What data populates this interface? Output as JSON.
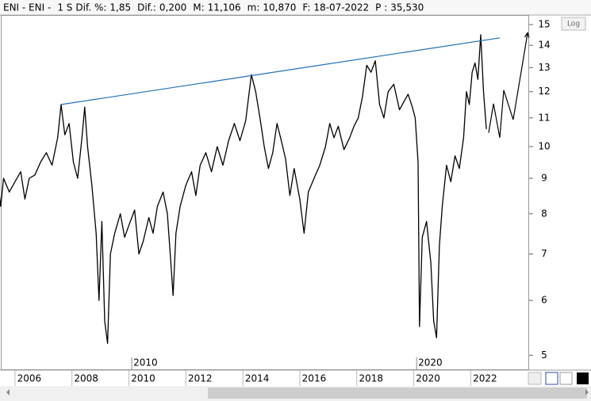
{
  "header": {
    "symbol": "ENI - ENI -",
    "period": "1 S",
    "items": [
      {
        "label": "Dif. %:",
        "value": "1,85",
        "color": "#3d8fd8"
      },
      {
        "label": "Dif.:",
        "value": "0,200",
        "color": "#3d8fd8"
      },
      {
        "label": "M:",
        "value": "11,106",
        "color": "#000000"
      },
      {
        "label": "m:",
        "value": "10,870",
        "color": "#000000"
      },
      {
        "label": "F:",
        "value": "18-07-2022",
        "color": "#000000"
      },
      {
        "label": "P :",
        "value": "35,530",
        "color": "#e0201a"
      }
    ]
  },
  "chart_data": {
    "type": "line",
    "color": "#000000",
    "log_scale": true,
    "log_button": "Log",
    "xlim": [
      2005.53,
      2024.05
    ],
    "xticks": [
      2006,
      2008,
      2010,
      2012,
      2014,
      2016,
      2018,
      2020,
      2022
    ],
    "ylim": [
      4.76,
      15.48
    ],
    "yticks": [
      5,
      6,
      7,
      8,
      9,
      10,
      11,
      12,
      13,
      14,
      15
    ],
    "period_markers": [
      {
        "x": 2010.1,
        "label": "2010"
      },
      {
        "x": 2020.1,
        "label": "2020"
      }
    ],
    "x": [
      2005.2,
      2005.4,
      2005.5,
      2005.6,
      2005.8,
      2006.0,
      2006.2,
      2006.35,
      2006.5,
      2006.7,
      2006.9,
      2007.1,
      2007.3,
      2007.5,
      2007.62,
      2007.75,
      2007.9,
      2008.05,
      2008.2,
      2008.35,
      2008.45,
      2008.55,
      2008.7,
      2008.85,
      2008.95,
      2009.05,
      2009.15,
      2009.25,
      2009.35,
      2009.5,
      2009.7,
      2009.85,
      2010.0,
      2010.2,
      2010.35,
      2010.5,
      2010.7,
      2010.85,
      2011.0,
      2011.2,
      2011.35,
      2011.45,
      2011.55,
      2011.65,
      2011.8,
      2012.0,
      2012.2,
      2012.35,
      2012.5,
      2012.7,
      2012.9,
      2013.1,
      2013.3,
      2013.5,
      2013.7,
      2013.9,
      2014.1,
      2014.3,
      2014.45,
      2014.6,
      2014.75,
      2014.9,
      2015.05,
      2015.2,
      2015.35,
      2015.5,
      2015.65,
      2015.8,
      2016.0,
      2016.15,
      2016.3,
      2016.5,
      2016.7,
      2016.9,
      2017.05,
      2017.2,
      2017.35,
      2017.55,
      2017.75,
      2017.9,
      2018.05,
      2018.2,
      2018.35,
      2018.5,
      2018.65,
      2018.8,
      2018.95,
      2019.1,
      2019.3,
      2019.5,
      2019.65,
      2019.8,
      2019.95,
      2020.05,
      2020.15,
      2020.2,
      2020.3,
      2020.45,
      2020.6,
      2020.7,
      2020.8,
      2020.9,
      2021.0,
      2021.15,
      2021.3,
      2021.45,
      2021.6,
      2021.75,
      2021.85,
      2021.95,
      2022.05,
      2022.15,
      2022.25,
      2022.35,
      2022.45,
      2022.55
    ],
    "values": [
      8.4,
      8.9,
      8.2,
      9.0,
      8.6,
      8.9,
      9.2,
      8.4,
      9.0,
      9.1,
      9.5,
      9.8,
      9.4,
      10.3,
      11.5,
      10.4,
      10.8,
      9.5,
      9.0,
      10.3,
      11.4,
      10.0,
      8.8,
      7.5,
      6.0,
      7.8,
      5.6,
      5.2,
      7.0,
      7.5,
      8.0,
      7.4,
      7.7,
      8.1,
      7.0,
      7.3,
      7.9,
      7.5,
      8.2,
      8.6,
      8.0,
      7.0,
      6.1,
      7.5,
      8.2,
      8.8,
      9.2,
      8.5,
      9.4,
      9.8,
      9.2,
      10.0,
      9.4,
      10.2,
      10.8,
      10.2,
      10.9,
      12.7,
      12.0,
      11.0,
      10.0,
      9.3,
      9.8,
      10.8,
      10.2,
      9.6,
      8.5,
      9.3,
      8.4,
      7.5,
      8.6,
      9.0,
      9.4,
      10.0,
      10.8,
      10.3,
      10.7,
      9.9,
      10.3,
      10.7,
      11.0,
      11.8,
      13.1,
      12.8,
      13.3,
      11.5,
      11.0,
      12.0,
      12.3,
      11.3,
      11.6,
      11.9,
      11.4,
      11.0,
      9.5,
      5.5,
      7.4,
      7.8,
      6.8,
      5.6,
      5.3,
      7.2,
      8.2,
      9.4,
      8.9,
      9.7,
      9.3,
      10.3,
      12.0,
      11.5,
      12.8,
      13.2,
      12.5,
      14.5,
      12.0,
      10.6
    ],
    "trend_line": {
      "color": "#1f6fb5",
      "x": [
        2007.62,
        2023.02
      ],
      "values": [
        11.5,
        14.35
      ]
    },
    "forecast": {
      "color": "#000000",
      "x": [
        2022.63,
        2022.8,
        2023.02,
        2023.16,
        2023.49,
        2024.0
      ],
      "values": [
        10.47,
        11.53,
        10.3,
        12.06,
        10.94,
        14.61
      ]
    }
  }
}
